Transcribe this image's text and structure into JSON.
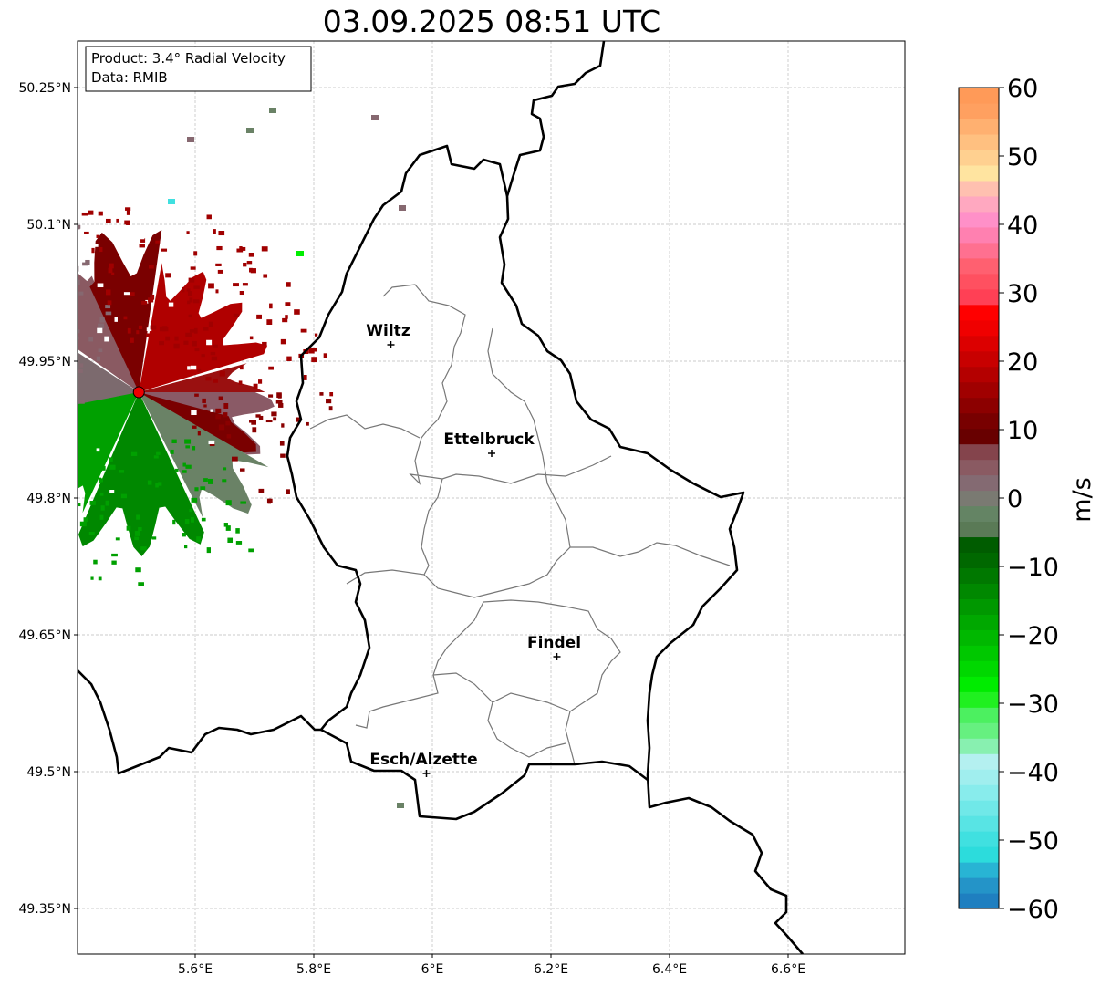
{
  "title": "03.09.2025 08:51 UTC",
  "info_box": {
    "line1": "Product: 3.4° Radial Velocity",
    "line2": "Data: RMIB"
  },
  "axes": {
    "lon_ticks": [
      {
        "value": 5.6,
        "label": "5.6°E"
      },
      {
        "value": 5.8,
        "label": "5.8°E"
      },
      {
        "value": 6.0,
        "label": "6°E"
      },
      {
        "value": 6.2,
        "label": "6.2°E"
      },
      {
        "value": 6.4,
        "label": "6.4°E"
      },
      {
        "value": 6.6,
        "label": "6.6°E"
      }
    ],
    "lat_ticks": [
      {
        "value": 50.25,
        "label": "50.25°N"
      },
      {
        "value": 50.1,
        "label": "50.1°N"
      },
      {
        "value": 49.95,
        "label": "49.95°N"
      },
      {
        "value": 49.8,
        "label": "49.8°N"
      },
      {
        "value": 49.65,
        "label": "49.65°N"
      },
      {
        "value": 49.5,
        "label": "49.5°N"
      },
      {
        "value": 49.35,
        "label": "49.35°N"
      }
    ]
  },
  "cities": [
    {
      "name": "Wiltz",
      "lon": 5.93,
      "lat": 49.968
    },
    {
      "name": "Ettelbruck",
      "lon": 6.1,
      "lat": 49.849
    },
    {
      "name": "Findel",
      "lon": 6.21,
      "lat": 49.626
    },
    {
      "name": "Esch/Alzette",
      "lon": 5.99,
      "lat": 49.498
    }
  ],
  "radar_site": {
    "lon": 5.505,
    "lat": 49.916
  },
  "colorbar": {
    "label": "m/s",
    "min": -60,
    "max": 60,
    "ticks": [
      {
        "v": 60,
        "label": "60"
      },
      {
        "v": 50,
        "label": "50"
      },
      {
        "v": 40,
        "label": "40"
      },
      {
        "v": 30,
        "label": "30"
      },
      {
        "v": 20,
        "label": "20"
      },
      {
        "v": 10,
        "label": "10"
      },
      {
        "v": 0,
        "label": "0"
      },
      {
        "v": -10,
        "label": "−10"
      },
      {
        "v": -20,
        "label": "−20"
      },
      {
        "v": -30,
        "label": "−30"
      },
      {
        "v": -40,
        "label": "−40"
      },
      {
        "v": -50,
        "label": "−50"
      },
      {
        "v": -60,
        "label": "−60"
      }
    ],
    "colors": [
      "#1f7fc0",
      "#2494c8",
      "#28b4d4",
      "#2cdcdc",
      "#40e0e0",
      "#58e4e4",
      "#70e8e8",
      "#88ecec",
      "#a0eeee",
      "#b4f0f0",
      "#88f0b0",
      "#66f080",
      "#4cf060",
      "#20f020",
      "#00ec00",
      "#00d800",
      "#00c800",
      "#00b800",
      "#00a800",
      "#009800",
      "#008800",
      "#007800",
      "#006800",
      "#005c00",
      "#5a7a56",
      "#648464",
      "#7a7a72",
      "#846a72",
      "#8a5a62",
      "#84444c",
      "#680000",
      "#780000",
      "#8c0000",
      "#a00000",
      "#b40000",
      "#c80000",
      "#dc0000",
      "#f00000",
      "#ff0000",
      "#ff4055",
      "#ff5060",
      "#ff6070",
      "#ff7090",
      "#ff80b0",
      "#ff90c8",
      "#ffa8c0",
      "#ffc0b0",
      "#ffe4a0",
      "#ffd090",
      "#ffc080",
      "#ffb070",
      "#ffa060",
      "#ff9a58"
    ]
  }
}
